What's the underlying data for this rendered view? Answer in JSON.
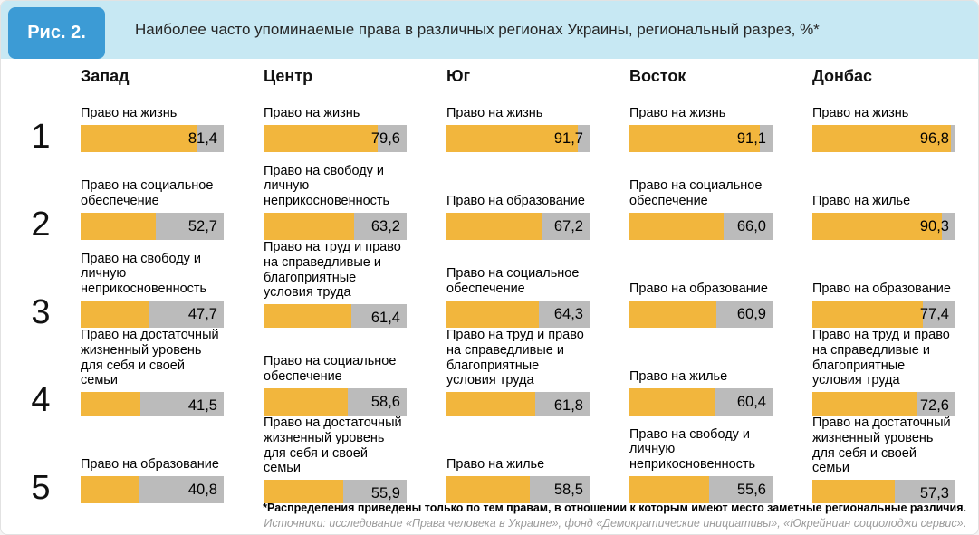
{
  "figure_label": "Рис. 2.",
  "title": "Наиболее часто упоминаемые права в различных регионах Украины, региональный разрез, %*",
  "footnote": "*Распределения приведены только по тем правам, в отношении к которым имеют место заметные региональные различия.",
  "sources": "Источники: исследование «Права человека в Украине», фонд «Демократические инициативы», «Юкрейниан социолоджи сервис».",
  "colors": {
    "accent_blue": "#3c9bd5",
    "title_bg": "#c7e8f3",
    "bar_fill": "#f2b63d",
    "bar_bg": "#bbbbbb"
  },
  "chart_data": {
    "type": "bar",
    "orientation": "horizontal",
    "unit": "%",
    "value_axis_max": 100,
    "ranks": [
      "1",
      "2",
      "3",
      "4",
      "5"
    ],
    "regions": [
      {
        "name": "Запад",
        "items": [
          {
            "rank": 1,
            "label": "Право на жизнь",
            "value": 81.4,
            "display": "81,4"
          },
          {
            "rank": 2,
            "label": "Право на социальное обеспечение",
            "value": 52.7,
            "display": "52,7"
          },
          {
            "rank": 3,
            "label": "Право на свободу и личную неприкосновенность",
            "value": 47.7,
            "display": "47,7"
          },
          {
            "rank": 4,
            "label": "Право на достаточный жизненный уровень для себя и своей семьи",
            "value": 41.5,
            "display": "41,5"
          },
          {
            "rank": 5,
            "label": "Право на образование",
            "value": 40.8,
            "display": "40,8"
          }
        ]
      },
      {
        "name": "Центр",
        "items": [
          {
            "rank": 1,
            "label": "Право на жизнь",
            "value": 79.6,
            "display": "79,6"
          },
          {
            "rank": 2,
            "label": "Право на свободу и личную неприкосновенность",
            "value": 63.2,
            "display": "63,2"
          },
          {
            "rank": 3,
            "label": "Право на труд и право на справедливые и благоприятные условия труда",
            "value": 61.4,
            "display": "61,4"
          },
          {
            "rank": 4,
            "label": "Право на социальное обеспечение",
            "value": 58.6,
            "display": "58,6"
          },
          {
            "rank": 5,
            "label": "Право на достаточный жизненный уровень для себя и своей семьи",
            "value": 55.9,
            "display": "55,9"
          }
        ]
      },
      {
        "name": "Юг",
        "items": [
          {
            "rank": 1,
            "label": "Право на жизнь",
            "value": 91.7,
            "display": "91,7"
          },
          {
            "rank": 2,
            "label": "Право на образование",
            "value": 67.2,
            "display": "67,2"
          },
          {
            "rank": 3,
            "label": "Право на социальное обеспечение",
            "value": 64.3,
            "display": "64,3"
          },
          {
            "rank": 4,
            "label": "Право на труд и право на справедливые и благоприятные условия труда",
            "value": 61.8,
            "display": "61,8"
          },
          {
            "rank": 5,
            "label": "Право на жилье",
            "value": 58.5,
            "display": "58,5"
          }
        ]
      },
      {
        "name": "Восток",
        "items": [
          {
            "rank": 1,
            "label": "Право на жизнь",
            "value": 91.1,
            "display": "91,1"
          },
          {
            "rank": 2,
            "label": "Право на социальное обеспечение",
            "value": 66.0,
            "display": "66,0"
          },
          {
            "rank": 3,
            "label": "Право на образование",
            "value": 60.9,
            "display": "60,9"
          },
          {
            "rank": 4,
            "label": "Право на жилье",
            "value": 60.4,
            "display": "60,4"
          },
          {
            "rank": 5,
            "label": "Право на свободу и личную неприкосновенность",
            "value": 55.6,
            "display": "55,6"
          }
        ]
      },
      {
        "name": "Донбас",
        "items": [
          {
            "rank": 1,
            "label": "Право на жизнь",
            "value": 96.8,
            "display": "96,8"
          },
          {
            "rank": 2,
            "label": "Право на жилье",
            "value": 90.3,
            "display": "90,3"
          },
          {
            "rank": 3,
            "label": "Право на образование",
            "value": 77.4,
            "display": "77,4"
          },
          {
            "rank": 4,
            "label": "Право на труд и право на справедливые и благоприятные условия труда",
            "value": 72.6,
            "display": "72,6"
          },
          {
            "rank": 5,
            "label": "Право на достаточный жизненный уровень для себя и своей семьи",
            "value": 57.3,
            "display": "57,3"
          }
        ]
      }
    ]
  }
}
